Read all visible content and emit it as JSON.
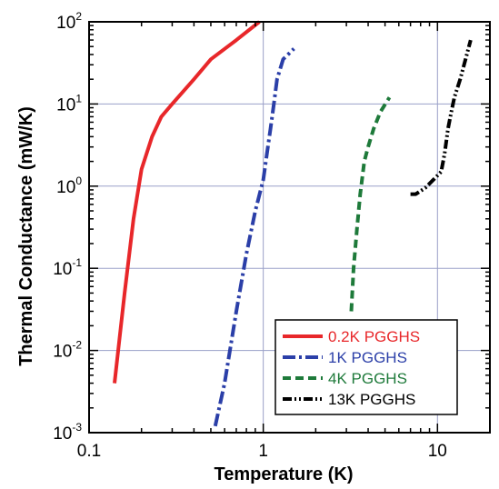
{
  "chart_data": {
    "type": "line",
    "xlabel": "Temperature (K)",
    "ylabel": "Thermal Conductance (mW/K)",
    "x_scale": "log",
    "y_scale": "log",
    "xlim": [
      0.1,
      20
    ],
    "ylim": [
      0.001,
      100
    ],
    "x_ticks": [
      {
        "value": 0.1,
        "label": "0.1"
      },
      {
        "value": 1,
        "label": "1"
      },
      {
        "value": 10,
        "label": "10"
      }
    ],
    "y_ticks": [
      {
        "value": 0.001,
        "base": "10",
        "exp": "-3"
      },
      {
        "value": 0.01,
        "base": "10",
        "exp": "-2"
      },
      {
        "value": 0.1,
        "base": "10",
        "exp": "-1"
      },
      {
        "value": 1,
        "base": "10",
        "exp": "0"
      },
      {
        "value": 10,
        "base": "10",
        "exp": "1"
      },
      {
        "value": 100,
        "base": "10",
        "exp": "2"
      }
    ],
    "grid": true,
    "legend_position": "bottom-right",
    "series": [
      {
        "name": "0.2K PGGHS",
        "color": "#e8272a",
        "dash": "solid",
        "points": [
          [
            0.14,
            0.004
          ],
          [
            0.16,
            0.05
          ],
          [
            0.18,
            0.4
          ],
          [
            0.2,
            1.6
          ],
          [
            0.23,
            4
          ],
          [
            0.26,
            7
          ],
          [
            0.3,
            10
          ],
          [
            0.4,
            20
          ],
          [
            0.5,
            35
          ],
          [
            0.7,
            60
          ],
          [
            0.95,
            100
          ]
        ]
      },
      {
        "name": "1K PGGHS",
        "color": "#2b3fa8",
        "dash": "dash-dot",
        "points": [
          [
            0.53,
            0.0012
          ],
          [
            0.6,
            0.004
          ],
          [
            0.7,
            0.03
          ],
          [
            0.8,
            0.15
          ],
          [
            0.9,
            0.5
          ],
          [
            1.0,
            1.2
          ],
          [
            1.05,
            2.5
          ],
          [
            1.1,
            5
          ],
          [
            1.15,
            10
          ],
          [
            1.2,
            20
          ],
          [
            1.3,
            35
          ],
          [
            1.5,
            47
          ]
        ]
      },
      {
        "name": "4K PGGHS",
        "color": "#1e7a3a",
        "dash": "dashed",
        "points": [
          [
            3.2,
            0.03
          ],
          [
            3.3,
            0.1
          ],
          [
            3.45,
            0.3
          ],
          [
            3.6,
            0.8
          ],
          [
            3.8,
            2
          ],
          [
            4.0,
            3
          ],
          [
            4.3,
            5
          ],
          [
            4.7,
            8
          ],
          [
            5.3,
            12
          ]
        ]
      },
      {
        "name": "13K PGGHS",
        "color": "#000000",
        "dash": "dash-dot-dot",
        "points": [
          [
            7.0,
            0.8
          ],
          [
            7.5,
            0.8
          ],
          [
            8.5,
            0.95
          ],
          [
            9.5,
            1.2
          ],
          [
            10.5,
            1.5
          ],
          [
            11.0,
            2.5
          ],
          [
            11.5,
            5
          ],
          [
            12.0,
            8
          ],
          [
            12.5,
            12
          ],
          [
            13.5,
            20
          ],
          [
            14.5,
            35
          ],
          [
            15.5,
            60
          ]
        ]
      }
    ]
  }
}
